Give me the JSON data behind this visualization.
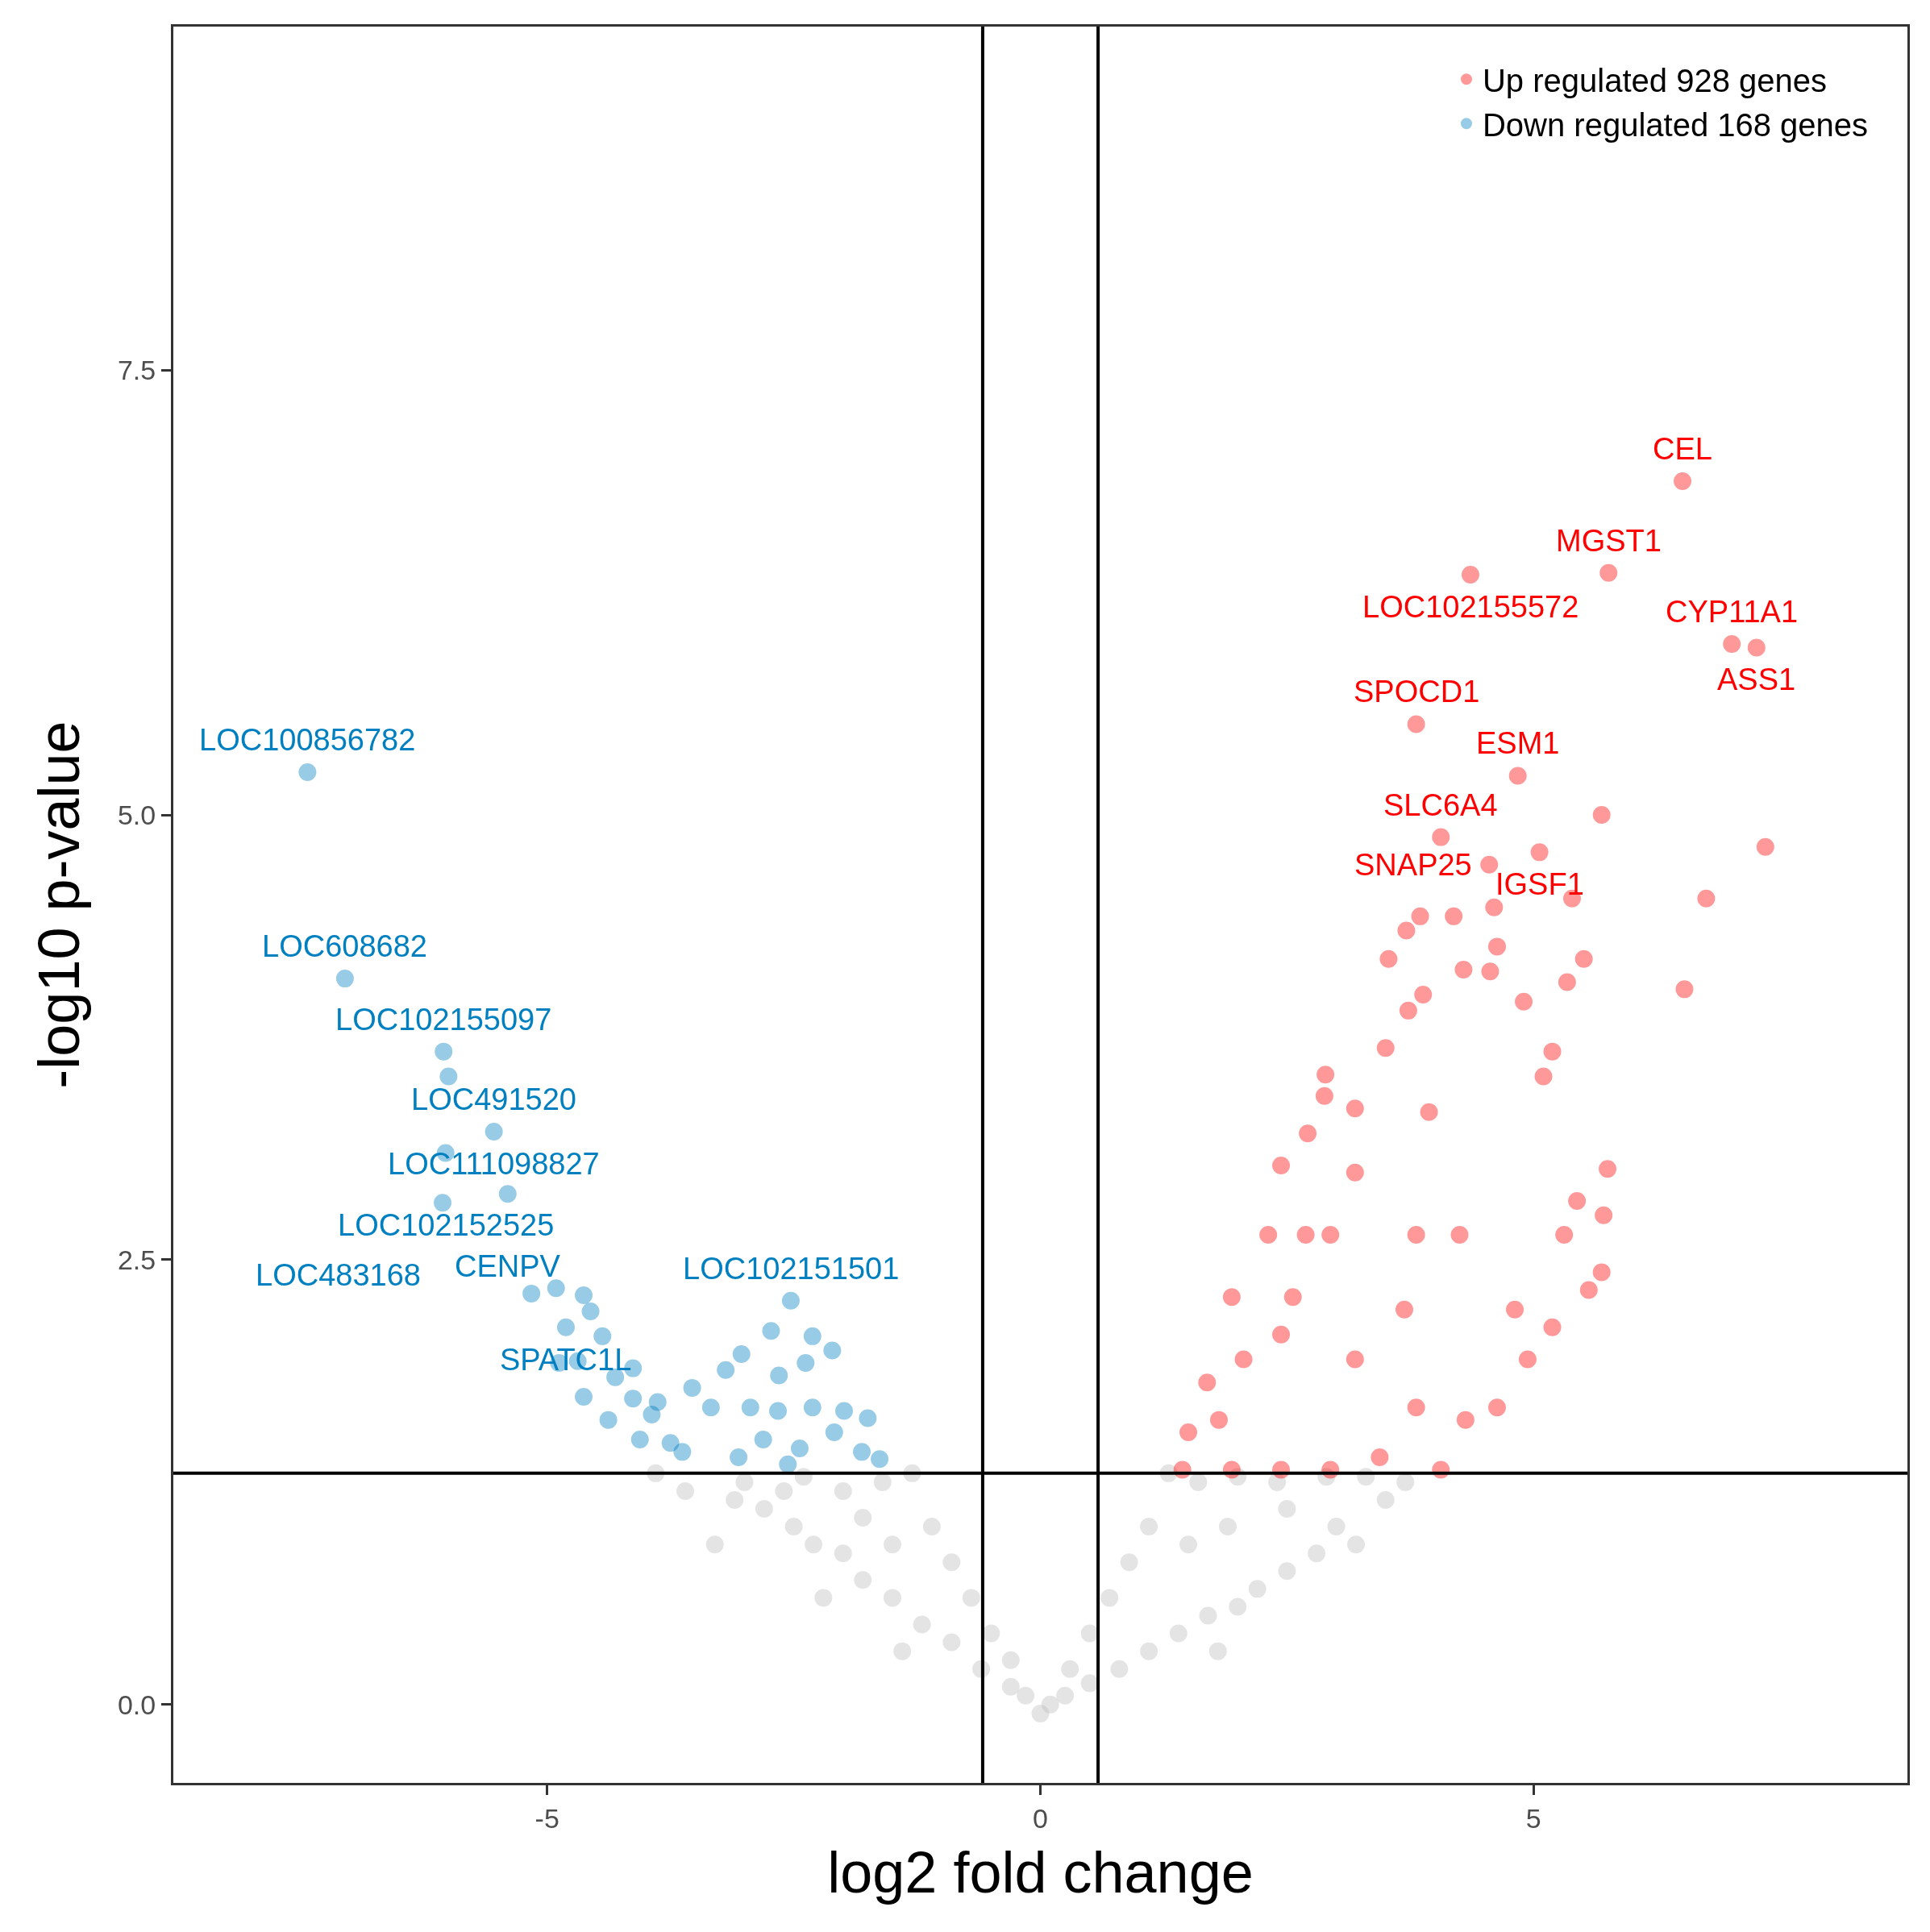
{
  "chart_data": {
    "type": "scatter",
    "xlabel": "log2 fold change",
    "ylabel": "-log10 p-value",
    "xlim": [
      -8.79,
      8.79
    ],
    "ylim": [
      -0.44,
      9.43
    ],
    "xticks": [
      -5,
      0,
      5
    ],
    "yticks": [
      {
        "value": 0,
        "label": "0.0"
      },
      {
        "value": 2.5,
        "label": "2.5"
      },
      {
        "value": 5,
        "label": "5.0"
      },
      {
        "value": 7.5,
        "label": "7.5"
      }
    ],
    "grid": false,
    "legend": "top right",
    "marker": "circle",
    "ref_lines": [
      {
        "axis": "x",
        "value": -0.585,
        "color": "#000000"
      },
      {
        "axis": "x",
        "value": 0.585,
        "color": "#000000"
      },
      {
        "axis": "y",
        "value": 1.301,
        "color": "#000000"
      }
    ],
    "series": [
      {
        "color": "#bebebe",
        "x": [
          -3.9,
          -3.6,
          -3.3,
          -3.1,
          -2.8,
          -2.5,
          -2.3,
          -2.0,
          -1.8,
          -1.5,
          -1.2,
          -0.9,
          -0.6,
          -0.3,
          -1.3,
          -1.6,
          -2.0,
          -2.4,
          -1.1,
          -0.9,
          -0.7,
          -0.5,
          -0.3,
          -1.5,
          -2.6,
          -3.0,
          -1.8,
          -0.15,
          -2.2,
          -1.4,
          3.7,
          3.5,
          3.2,
          3.0,
          2.8,
          2.5,
          2.2,
          2.0,
          1.7,
          1.4,
          1.1,
          0.8,
          0.5,
          0.25,
          1.3,
          1.6,
          2.0,
          2.4,
          2.9,
          3.3,
          1.1,
          0.9,
          0.7,
          0.5,
          0.3,
          1.5,
          1.9,
          2.5,
          0.1,
          1.8,
          0.0
        ],
        "values": [
          1.3,
          1.2,
          0.9,
          1.15,
          1.1,
          1.0,
          0.9,
          0.85,
          0.7,
          0.6,
          0.45,
          0.35,
          0.2,
          0.1,
          1.3,
          1.25,
          1.2,
          1.28,
          1.0,
          0.8,
          0.6,
          0.4,
          0.25,
          0.9,
          1.2,
          1.25,
          1.05,
          0.05,
          0.6,
          0.3,
          1.25,
          1.15,
          0.9,
          1.0,
          0.85,
          0.75,
          0.65,
          0.55,
          0.5,
          0.4,
          0.3,
          0.2,
          0.12,
          0.05,
          1.3,
          1.25,
          1.28,
          1.25,
          1.28,
          1.28,
          1.0,
          0.8,
          0.6,
          0.4,
          0.2,
          0.9,
          1.0,
          1.1,
          0.0,
          0.3,
          -0.05
        ]
      },
      {
        "name": "Up regulated 928 genes",
        "color": "#ff0000",
        "x": [
          6.51,
          5.76,
          4.36,
          7.01,
          7.26,
          3.81,
          4.84,
          4.06,
          5.06,
          4.55,
          5.69,
          7.35,
          6.75,
          6.53,
          5.39,
          5.51,
          5.34,
          5.19,
          5.1,
          5.75,
          5.71,
          5.44,
          4.9,
          4.6,
          4.19,
          3.85,
          3.71,
          3.53,
          4.29,
          4.56,
          4.63,
          3.88,
          3.73,
          3.5,
          3.19,
          2.89,
          2.88,
          2.44,
          2.71,
          1.94,
          1.69,
          1.5,
          1.44,
          2.31,
          2.56,
          2.94,
          3.19,
          3.44,
          3.81,
          4.31,
          4.94,
          5.19,
          5.56,
          5.69,
          5.31,
          4.81,
          4.06,
          1.94,
          2.44,
          2.94,
          1.81,
          2.06,
          2.44,
          2.69,
          3.19,
          3.94,
          4.25,
          4.63,
          3.81,
          3.69
        ],
        "values": [
          6.875,
          6.36,
          6.35,
          5.96,
          5.94,
          5.51,
          5.22,
          4.875,
          4.79,
          4.72,
          5.0,
          4.82,
          4.53,
          4.02,
          4.53,
          4.19,
          4.06,
          3.67,
          3.53,
          3.01,
          2.75,
          2.83,
          3.95,
          4.48,
          4.43,
          4.43,
          4.35,
          4.19,
          4.13,
          4.12,
          4.26,
          3.99,
          3.9,
          3.69,
          3.35,
          3.54,
          3.42,
          3.03,
          3.21,
          2.29,
          1.81,
          1.53,
          1.32,
          2.64,
          2.29,
          2.64,
          1.94,
          1.39,
          1.67,
          1.6,
          1.94,
          2.12,
          2.33,
          2.43,
          2.64,
          2.22,
          1.32,
          1.32,
          1.32,
          1.32,
          1.6,
          1.94,
          2.08,
          2.64,
          2.99,
          3.33,
          2.64,
          1.67,
          2.64,
          2.22
        ]
      },
      {
        "name": "Down regulated 168 genes",
        "color": "#0080c0",
        "x": [
          -7.43,
          -7.05,
          -6.05,
          -6.0,
          -5.54,
          -6.03,
          -5.4,
          -6.06,
          -2.53,
          -4.81,
          -5.16,
          -4.91,
          -4.63,
          -4.56,
          -4.44,
          -4.88,
          -4.69,
          -4.31,
          -4.13,
          -4.63,
          -4.38,
          -4.13,
          -3.88,
          -4.06,
          -3.75,
          -3.94,
          -3.53,
          -3.34,
          -3.19,
          -3.03,
          -2.73,
          -2.31,
          -2.11,
          -2.38,
          -2.65,
          -2.94,
          -2.66,
          -2.31,
          -1.99,
          -1.75,
          -2.81,
          -2.44,
          -2.09,
          -1.81,
          -1.63,
          -3.06,
          -2.56,
          -3.63
        ],
        "values": [
          5.24,
          4.08,
          3.67,
          3.53,
          3.22,
          3.1,
          2.87,
          2.82,
          2.27,
          2.12,
          2.31,
          2.34,
          2.3,
          2.21,
          2.07,
          1.92,
          1.93,
          1.84,
          1.89,
          1.73,
          1.6,
          1.72,
          1.7,
          1.49,
          1.47,
          1.63,
          1.78,
          1.67,
          1.88,
          1.97,
          2.1,
          2.07,
          1.99,
          1.92,
          1.85,
          1.67,
          1.65,
          1.67,
          1.65,
          1.61,
          1.49,
          1.44,
          1.53,
          1.42,
          1.38,
          1.39,
          1.35,
          1.42
        ]
      }
    ],
    "annotations": [
      {
        "text": "CEL",
        "x": 6.51,
        "y": 6.875
      },
      {
        "text": "MGST1",
        "x": 5.76,
        "y": 6.36
      },
      {
        "text": "LOC102155572",
        "x": 4.36,
        "y": 6.35
      },
      {
        "text": "CYP11A1",
        "x": 7.01,
        "y": 5.96
      },
      {
        "text": "ASS1",
        "x": 7.26,
        "y": 5.94
      },
      {
        "text": "SPOCD1",
        "x": 3.81,
        "y": 5.51
      },
      {
        "text": "ESM1",
        "x": 4.84,
        "y": 5.22
      },
      {
        "text": "SLC6A4",
        "x": 4.06,
        "y": 4.875
      },
      {
        "text": "IGSF1",
        "x": 5.06,
        "y": 4.79
      },
      {
        "text": "SNAP25",
        "x": 4.55,
        "y": 4.72
      },
      {
        "text": "LOC100856782",
        "x": -7.43,
        "y": 5.24
      },
      {
        "text": "LOC608682",
        "x": -7.05,
        "y": 4.08
      },
      {
        "text": "LOC102155097",
        "x": -6.05,
        "y": 3.67
      },
      {
        "text": "LOC491520",
        "x": -5.54,
        "y": 3.22
      },
      {
        "text": "LOC111098827",
        "x": -5.54,
        "y": 3.22
      },
      {
        "text": "LOC102152525",
        "x": -6.03,
        "y": 3.1
      },
      {
        "text": "CENPV",
        "x": -5.4,
        "y": 2.87
      },
      {
        "text": "LOC483168",
        "x": -6.06,
        "y": 2.82
      },
      {
        "text": "LOC102151501",
        "x": -2.53,
        "y": 2.27
      },
      {
        "text": "SPATC1L",
        "x": -4.81,
        "y": 2.12
      }
    ]
  }
}
